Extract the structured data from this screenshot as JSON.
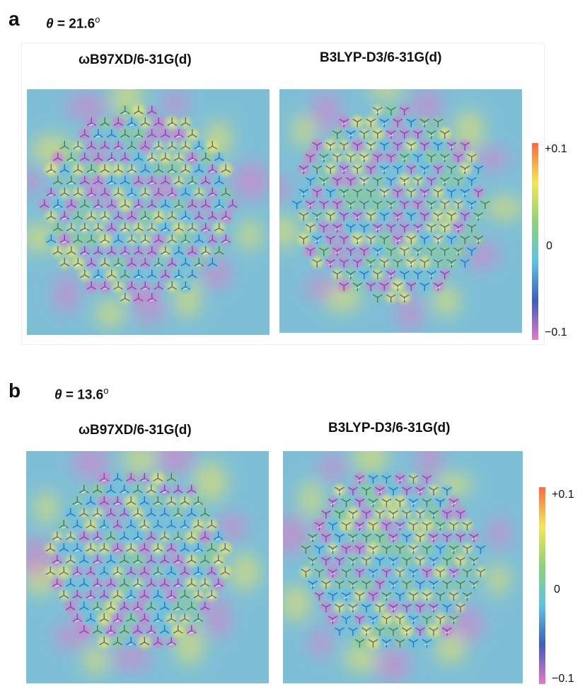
{
  "panels": [
    {
      "letter": "a",
      "theta_symbol": "θ",
      "theta_value": " = 21.6",
      "theta_unit": "o",
      "maps": [
        {
          "method": "ωB97XD/6-31G(d)"
        },
        {
          "method": "B3LYP-D3/6-31G(d)"
        }
      ],
      "colorbar": {
        "max_label": "+0.1",
        "mid_label": "0",
        "min_label": "−0.1"
      }
    },
    {
      "letter": "b",
      "theta_symbol": "θ",
      "theta_value": " = 13.6",
      "theta_unit": "o",
      "maps": [
        {
          "method": "ωB97XD/6-31G(d)"
        },
        {
          "method": "B3LYP-D3/6-31G(d)"
        }
      ],
      "colorbar": {
        "max_label": "+0.1",
        "mid_label": "0",
        "min_label": "−0.1"
      }
    }
  ],
  "colors": {
    "background_field": "#7fbfd6",
    "positive": "#f46d43",
    "yellow": "#f2e75a",
    "green": "#8fd17a",
    "zero": "#5fc3de",
    "blue": "#3f5fb8",
    "negative": "#e27ac8"
  }
}
